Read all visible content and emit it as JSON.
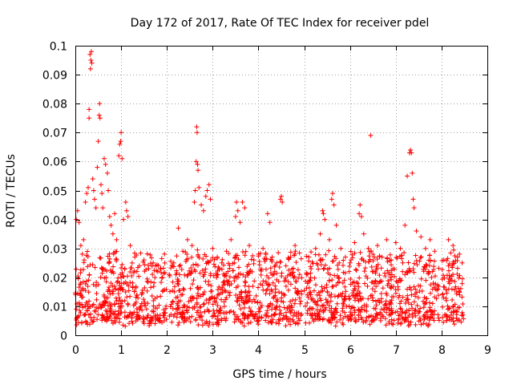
{
  "chart_data": {
    "type": "scatter",
    "title": "Day 172 of 2017, Rate Of TEC Index for receiver pdel",
    "xlabel": "GPS time / hours",
    "ylabel": "ROTI / TECUs",
    "xlim": [
      0,
      9
    ],
    "ylim": [
      0,
      0.1
    ],
    "xticks": [
      "0",
      "1",
      "2",
      "3",
      "4",
      "5",
      "6",
      "7",
      "8",
      "9"
    ],
    "yticks": [
      "0",
      "0.01",
      "0.02",
      "0.03",
      "0.04",
      "0.05",
      "0.06",
      "0.07",
      "0.08",
      "0.09",
      "0.1"
    ],
    "grid": true,
    "marker": "+",
    "color": "#ff0000",
    "series": [
      {
        "name": "ROTI",
        "points": [
          [
            0.02,
            0.04
          ],
          [
            0.05,
            0.043
          ],
          [
            0.08,
            0.039
          ],
          [
            0.12,
            0.031
          ],
          [
            0.15,
            0.028
          ],
          [
            0.18,
            0.033
          ],
          [
            0.22,
            0.046
          ],
          [
            0.25,
            0.049
          ],
          [
            0.28,
            0.051
          ],
          [
            0.3,
            0.075
          ],
          [
            0.3,
            0.078
          ],
          [
            0.32,
            0.097
          ],
          [
            0.33,
            0.092
          ],
          [
            0.34,
            0.095
          ],
          [
            0.35,
            0.098
          ],
          [
            0.36,
            0.094
          ],
          [
            0.38,
            0.054
          ],
          [
            0.4,
            0.05
          ],
          [
            0.42,
            0.047
          ],
          [
            0.45,
            0.044
          ],
          [
            0.48,
            0.058
          ],
          [
            0.5,
            0.067
          ],
          [
            0.52,
            0.076
          ],
          [
            0.53,
            0.08
          ],
          [
            0.54,
            0.075
          ],
          [
            0.56,
            0.052
          ],
          [
            0.58,
            0.049
          ],
          [
            0.6,
            0.044
          ],
          [
            0.63,
            0.061
          ],
          [
            0.66,
            0.059
          ],
          [
            0.7,
            0.056
          ],
          [
            0.72,
            0.05
          ],
          [
            0.75,
            0.041
          ],
          [
            0.78,
            0.038
          ],
          [
            0.82,
            0.035
          ],
          [
            0.86,
            0.042
          ],
          [
            0.9,
            0.033
          ],
          [
            0.95,
            0.062
          ],
          [
            0.97,
            0.066
          ],
          [
            0.99,
            0.067
          ],
          [
            1.0,
            0.07
          ],
          [
            1.02,
            0.061
          ],
          [
            1.05,
            0.04
          ],
          [
            1.1,
            0.046
          ],
          [
            1.12,
            0.043
          ],
          [
            1.15,
            0.041
          ],
          [
            1.2,
            0.031
          ],
          [
            1.3,
            0.027
          ],
          [
            1.4,
            0.024
          ],
          [
            1.5,
            0.026
          ],
          [
            1.6,
            0.023
          ],
          [
            1.7,
            0.025
          ],
          [
            1.8,
            0.022
          ],
          [
            1.9,
            0.02
          ],
          [
            2.05,
            0.021
          ],
          [
            2.15,
            0.025
          ],
          [
            2.25,
            0.037
          ],
          [
            2.35,
            0.029
          ],
          [
            2.45,
            0.033
          ],
          [
            2.55,
            0.031
          ],
          [
            2.6,
            0.046
          ],
          [
            2.62,
            0.05
          ],
          [
            2.64,
            0.06
          ],
          [
            2.65,
            0.072
          ],
          [
            2.66,
            0.07
          ],
          [
            2.67,
            0.059
          ],
          [
            2.68,
            0.057
          ],
          [
            2.7,
            0.051
          ],
          [
            2.75,
            0.045
          ],
          [
            2.8,
            0.043
          ],
          [
            2.85,
            0.048
          ],
          [
            2.88,
            0.05
          ],
          [
            2.92,
            0.052
          ],
          [
            2.95,
            0.047
          ],
          [
            3.0,
            0.03
          ],
          [
            3.1,
            0.027
          ],
          [
            3.2,
            0.025
          ],
          [
            3.3,
            0.029
          ],
          [
            3.4,
            0.033
          ],
          [
            3.5,
            0.041
          ],
          [
            3.52,
            0.046
          ],
          [
            3.55,
            0.043
          ],
          [
            3.6,
            0.039
          ],
          [
            3.65,
            0.046
          ],
          [
            3.7,
            0.044
          ],
          [
            3.8,
            0.031
          ],
          [
            3.9,
            0.026
          ],
          [
            4.0,
            0.028
          ],
          [
            4.1,
            0.03
          ],
          [
            4.2,
            0.042
          ],
          [
            4.25,
            0.039
          ],
          [
            4.3,
            0.027
          ],
          [
            4.4,
            0.025
          ],
          [
            4.48,
            0.047
          ],
          [
            4.5,
            0.048
          ],
          [
            4.52,
            0.046
          ],
          [
            4.6,
            0.024
          ],
          [
            4.7,
            0.027
          ],
          [
            4.8,
            0.031
          ],
          [
            4.9,
            0.021
          ],
          [
            5.05,
            0.021
          ],
          [
            5.15,
            0.023
          ],
          [
            5.25,
            0.03
          ],
          [
            5.35,
            0.035
          ],
          [
            5.4,
            0.043
          ],
          [
            5.42,
            0.042
          ],
          [
            5.45,
            0.04
          ],
          [
            5.55,
            0.033
          ],
          [
            5.6,
            0.047
          ],
          [
            5.62,
            0.049
          ],
          [
            5.65,
            0.045
          ],
          [
            5.7,
            0.038
          ],
          [
            5.8,
            0.03
          ],
          [
            5.9,
            0.027
          ],
          [
            6.0,
            0.025
          ],
          [
            6.1,
            0.032
          ],
          [
            6.2,
            0.042
          ],
          [
            6.22,
            0.045
          ],
          [
            6.25,
            0.041
          ],
          [
            6.3,
            0.035
          ],
          [
            6.4,
            0.03
          ],
          [
            6.45,
            0.069
          ],
          [
            6.5,
            0.028
          ],
          [
            6.6,
            0.031
          ],
          [
            6.7,
            0.027
          ],
          [
            6.8,
            0.033
          ],
          [
            6.9,
            0.026
          ],
          [
            7.0,
            0.032
          ],
          [
            7.1,
            0.03
          ],
          [
            7.2,
            0.038
          ],
          [
            7.25,
            0.055
          ],
          [
            7.3,
            0.063
          ],
          [
            7.32,
            0.064
          ],
          [
            7.34,
            0.063
          ],
          [
            7.36,
            0.056
          ],
          [
            7.38,
            0.047
          ],
          [
            7.4,
            0.044
          ],
          [
            7.45,
            0.036
          ],
          [
            7.55,
            0.034
          ],
          [
            7.65,
            0.03
          ],
          [
            7.75,
            0.033
          ],
          [
            7.85,
            0.029
          ],
          [
            8.05,
            0.026
          ],
          [
            8.15,
            0.033
          ],
          [
            8.25,
            0.031
          ],
          [
            8.35,
            0.027
          ],
          [
            8.45,
            0.025
          ]
        ]
      }
    ],
    "dense_band": {
      "segments": [
        [
          0.0,
          2.0
        ],
        [
          2.05,
          4.95
        ],
        [
          5.0,
          7.95
        ],
        [
          8.0,
          8.5
        ]
      ],
      "typical_min": 0.003,
      "typical_max": 0.026,
      "note": "dense cloud of points between these values across each time segment"
    }
  }
}
